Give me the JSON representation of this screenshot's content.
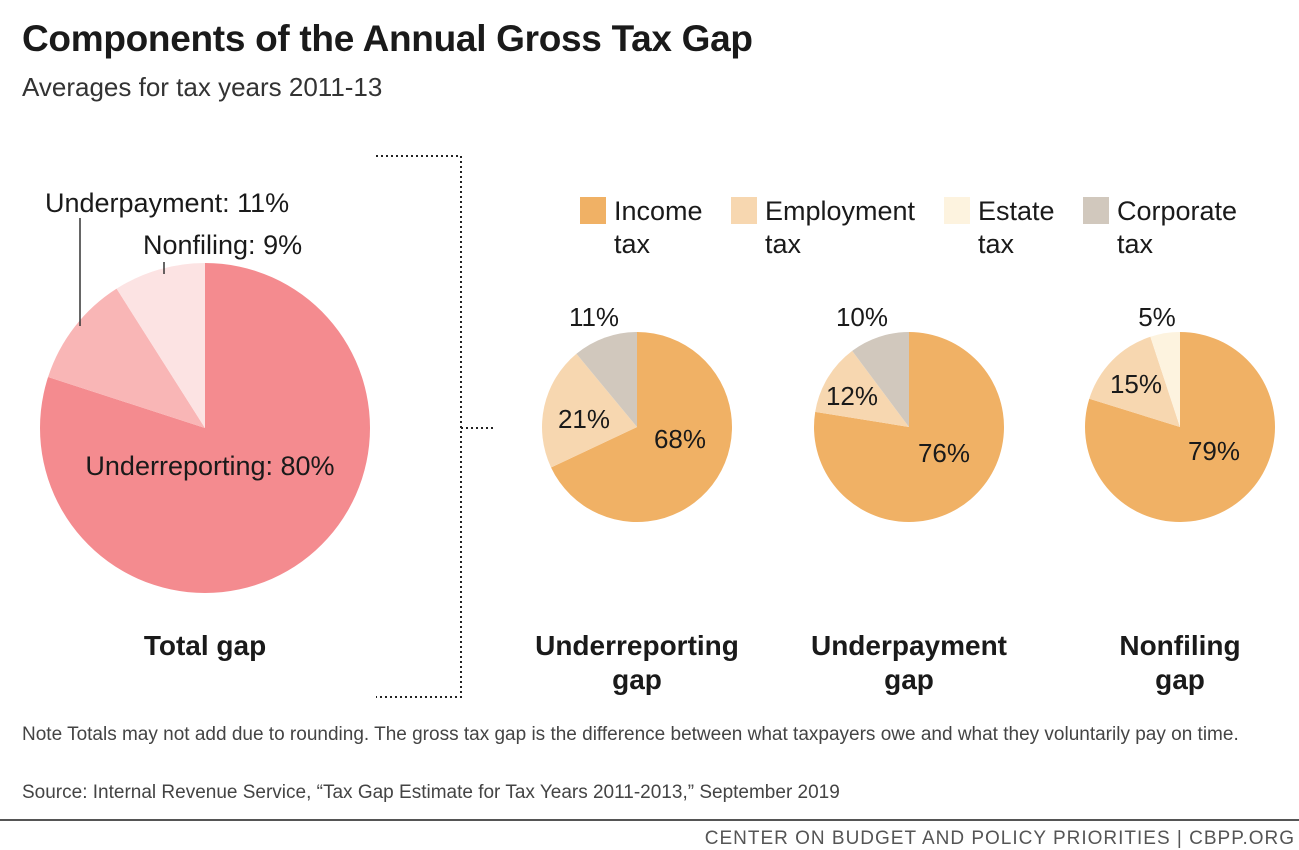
{
  "title": "Components of the Annual Gross Tax Gap",
  "subtitle": "Averages for tax years 2011-13",
  "note": "Note Totals may not add due to rounding. The gross tax gap is the difference between what taxpayers owe and what they voluntarily pay on time.",
  "source": "Source: Internal Revenue Service, “Tax Gap Estimate for Tax Years 2011-2013,” September 2019",
  "footer": "CENTER ON BUDGET AND POLICY PRIORITIES | CBPP.ORG",
  "legend": [
    {
      "line1": "Income",
      "line2": "tax",
      "color": "#f0b165"
    },
    {
      "line1": "Employment",
      "line2": "tax",
      "color": "#f7d7b0"
    },
    {
      "line1": "Estate",
      "line2": "tax",
      "color": "#fdf3df"
    },
    {
      "line1": "Corporate",
      "line2": "tax",
      "color": "#d1c8bd"
    }
  ],
  "chart_data": [
    {
      "type": "pie",
      "title": "Total gap",
      "slices": [
        {
          "label": "Underreporting",
          "value": 80,
          "display": "Underreporting: 80%",
          "color": "#f48b8f"
        },
        {
          "label": "Underpayment",
          "value": 11,
          "display": "Underpayment: 11%",
          "color": "#f9b6b6"
        },
        {
          "label": "Nonfiling",
          "value": 9,
          "display": "Nonfiling: 9%",
          "color": "#fce3e3"
        }
      ]
    },
    {
      "type": "pie",
      "title": "Underreporting gap",
      "slices": [
        {
          "label": "Income tax",
          "value": 68,
          "display": "68%",
          "color": "#f0b165"
        },
        {
          "label": "Employment tax",
          "value": 21,
          "display": "21%",
          "color": "#f7d7b0"
        },
        {
          "label": "Corporate tax",
          "value": 11,
          "display": "11%",
          "color": "#d1c8bd"
        }
      ]
    },
    {
      "type": "pie",
      "title": "Underpayment gap",
      "slices": [
        {
          "label": "Income tax",
          "value": 76,
          "display": "76%",
          "color": "#f0b165"
        },
        {
          "label": "Employment tax",
          "value": 12,
          "display": "12%",
          "color": "#f7d7b0"
        },
        {
          "label": "Corporate tax",
          "value": 10,
          "display": "10%",
          "color": "#d1c8bd"
        }
      ]
    },
    {
      "type": "pie",
      "title": "Nonfiling gap",
      "slices": [
        {
          "label": "Income tax",
          "value": 79,
          "display": "79%",
          "color": "#f0b165"
        },
        {
          "label": "Employment tax",
          "value": 15,
          "display": "15%",
          "color": "#f7d7b0"
        },
        {
          "label": "Estate tax",
          "value": 5,
          "display": "5%",
          "color": "#fdf3df"
        }
      ]
    }
  ]
}
